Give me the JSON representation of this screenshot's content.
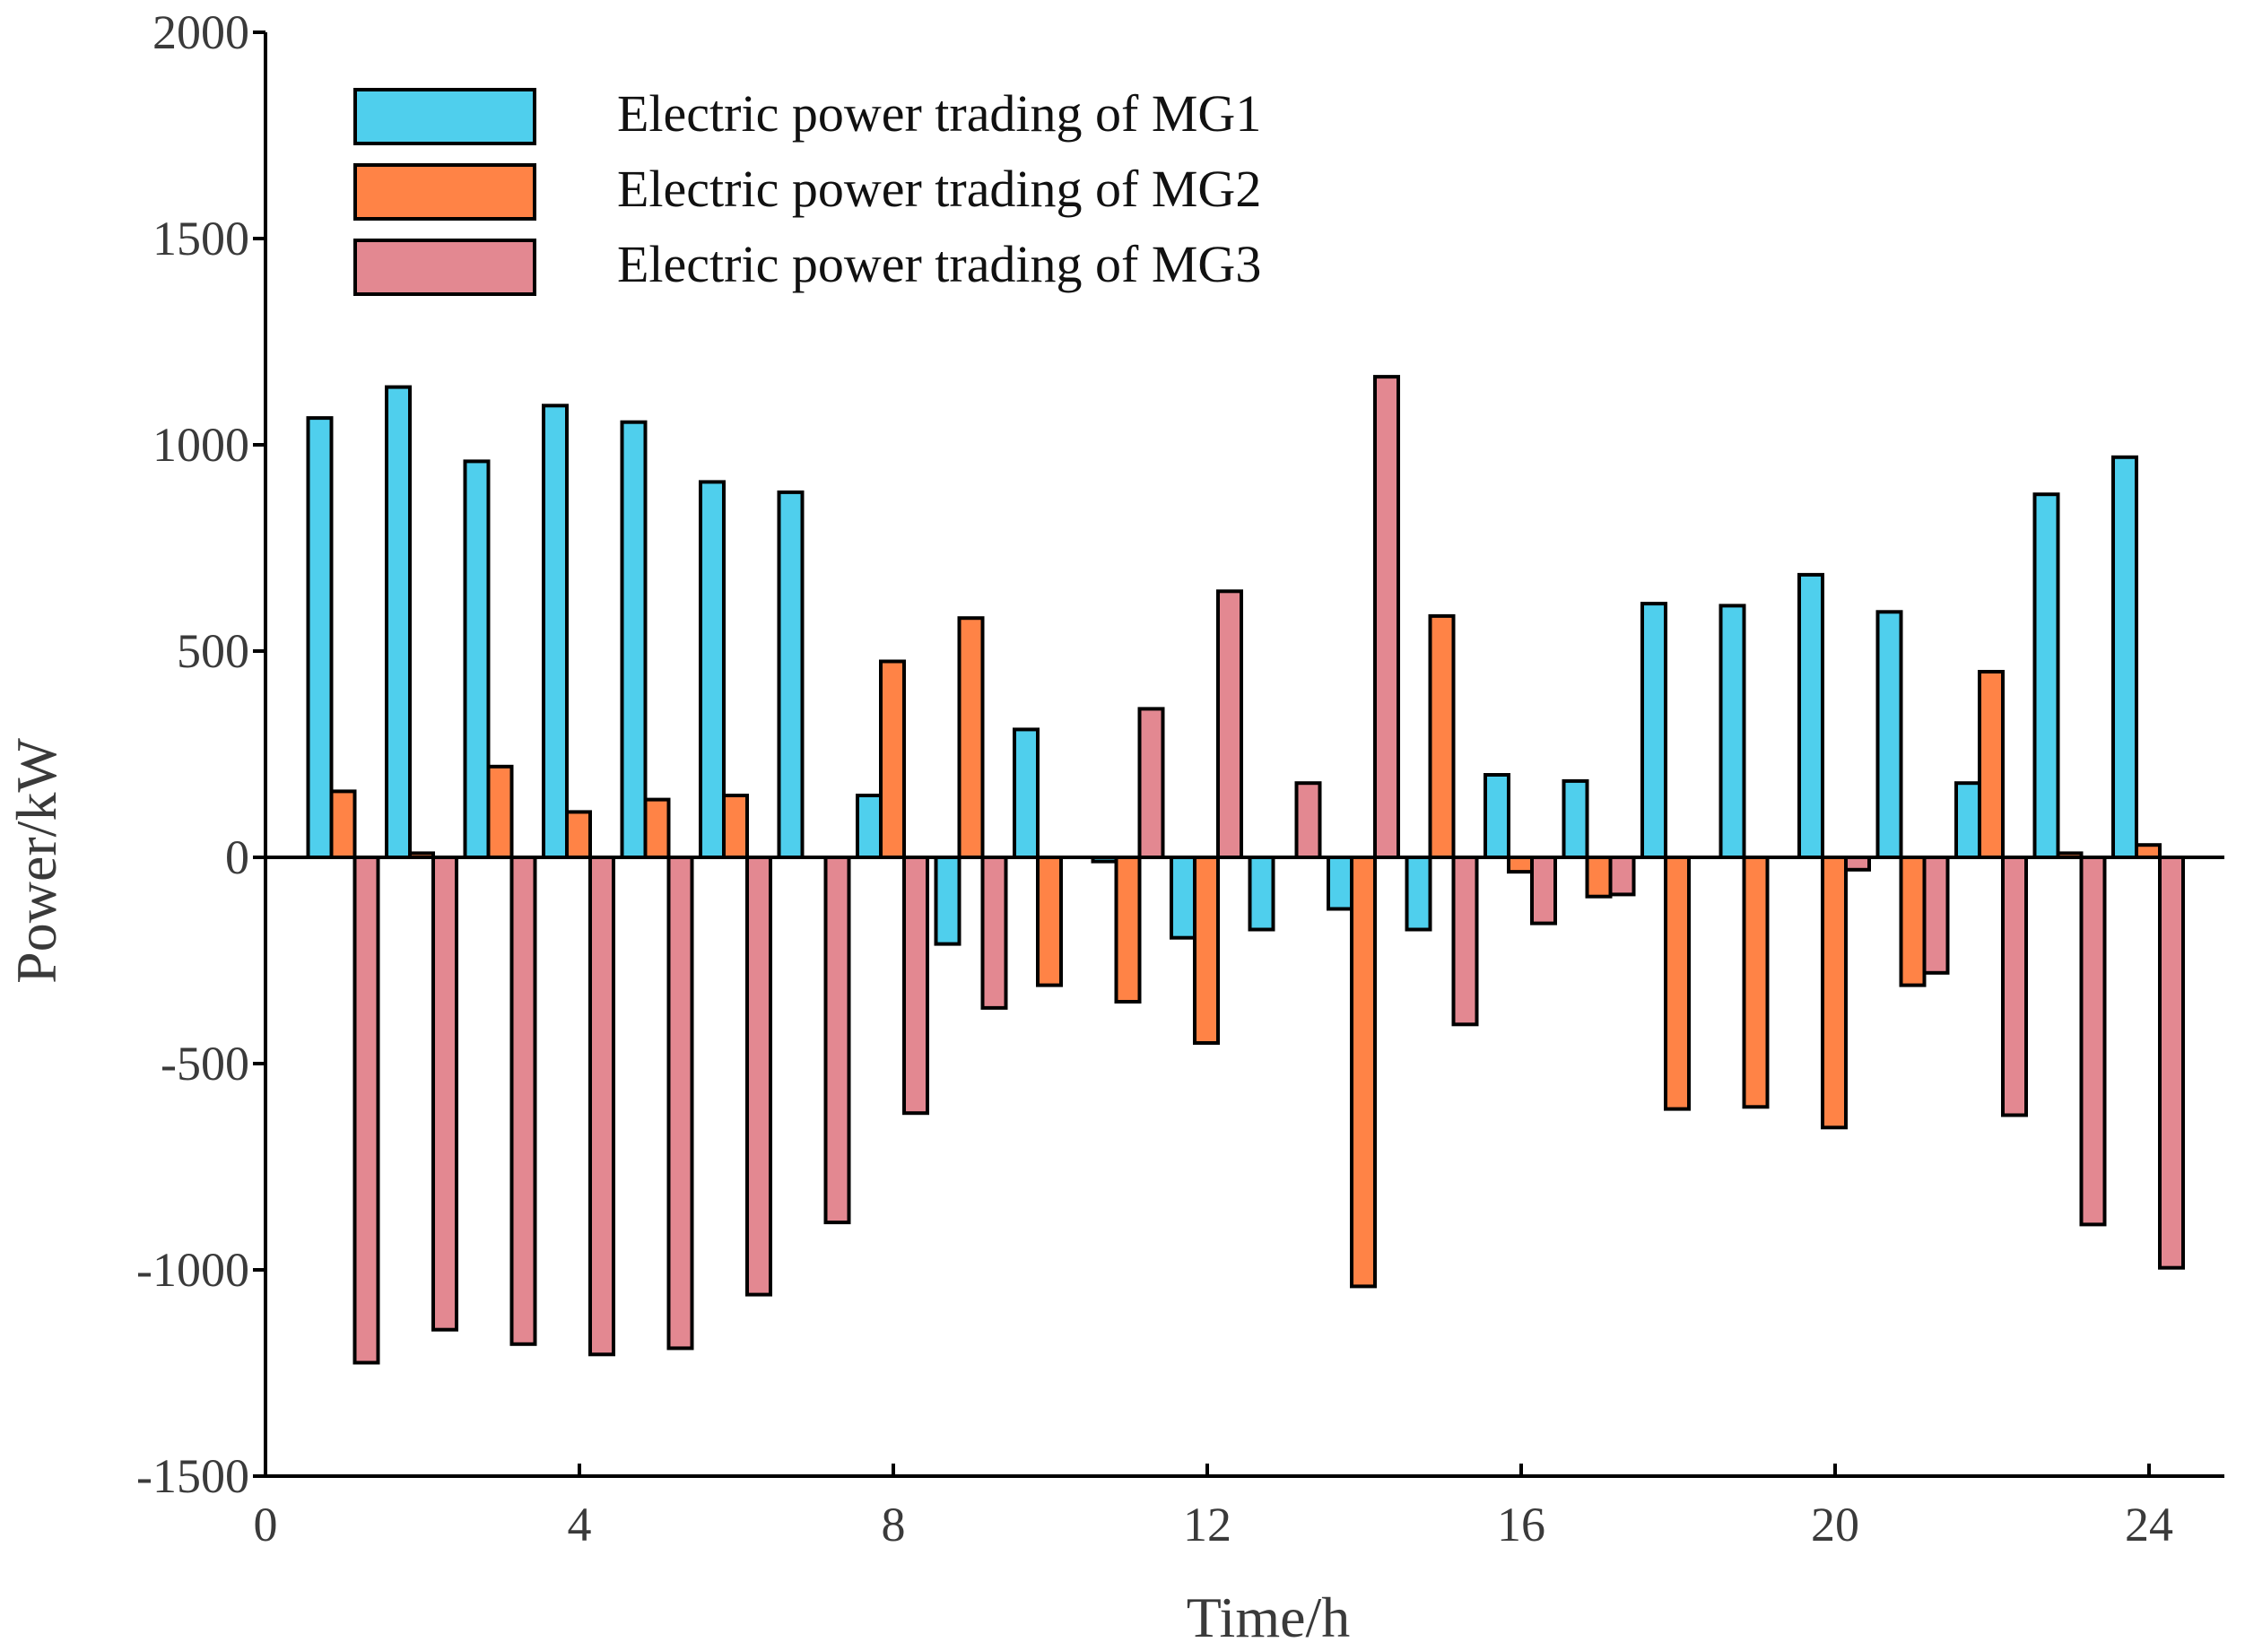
{
  "chart_data": {
    "type": "bar",
    "title": "",
    "xlabel": "Time/h",
    "ylabel": "Power/kW",
    "xlim": [
      0,
      25
    ],
    "ylim": [
      -1500,
      2000
    ],
    "xticks": [
      0,
      4,
      8,
      12,
      16,
      20,
      24
    ],
    "yticks": [
      -1500,
      -1000,
      -500,
      0,
      500,
      1000,
      1500,
      2000
    ],
    "xtick_labels": [
      "0",
      "4",
      "8",
      "12",
      "16",
      "20",
      "24"
    ],
    "ytick_labels": [
      "-1500",
      "-1000",
      "-500",
      "0",
      "500",
      "1000",
      "1500",
      "2000"
    ],
    "grid": false,
    "legend_position": "top-left",
    "categories": [
      1,
      2,
      3,
      4,
      5,
      6,
      7,
      8,
      9,
      10,
      11,
      12,
      13,
      14,
      15,
      16,
      17,
      18,
      19,
      20,
      21,
      22,
      23,
      24
    ],
    "series": [
      {
        "name": "Electric power trading of MG1",
        "color": "#4fcfed",
        "values": [
          1065,
          1140,
          960,
          1095,
          1055,
          910,
          885,
          150,
          -210,
          310,
          -10,
          -195,
          -175,
          -125,
          -175,
          200,
          185,
          615,
          610,
          685,
          595,
          180,
          880,
          970
        ]
      },
      {
        "name": "Electric power trading of MG2",
        "color": "#ff8346",
        "values": [
          160,
          10,
          220,
          110,
          140,
          150,
          0,
          475,
          580,
          -310,
          -350,
          -450,
          0,
          -1040,
          585,
          -35,
          -95,
          -610,
          -605,
          -655,
          -310,
          450,
          10,
          30
        ]
      },
      {
        "name": "Electric power trading of MG3",
        "color": "#e38891",
        "values": [
          -1225,
          -1145,
          -1180,
          -1205,
          -1190,
          -1060,
          -885,
          -620,
          -365,
          0,
          360,
          645,
          180,
          1165,
          -405,
          -160,
          -90,
          0,
          0,
          -30,
          -280,
          -625,
          -890,
          -995
        ]
      }
    ]
  }
}
